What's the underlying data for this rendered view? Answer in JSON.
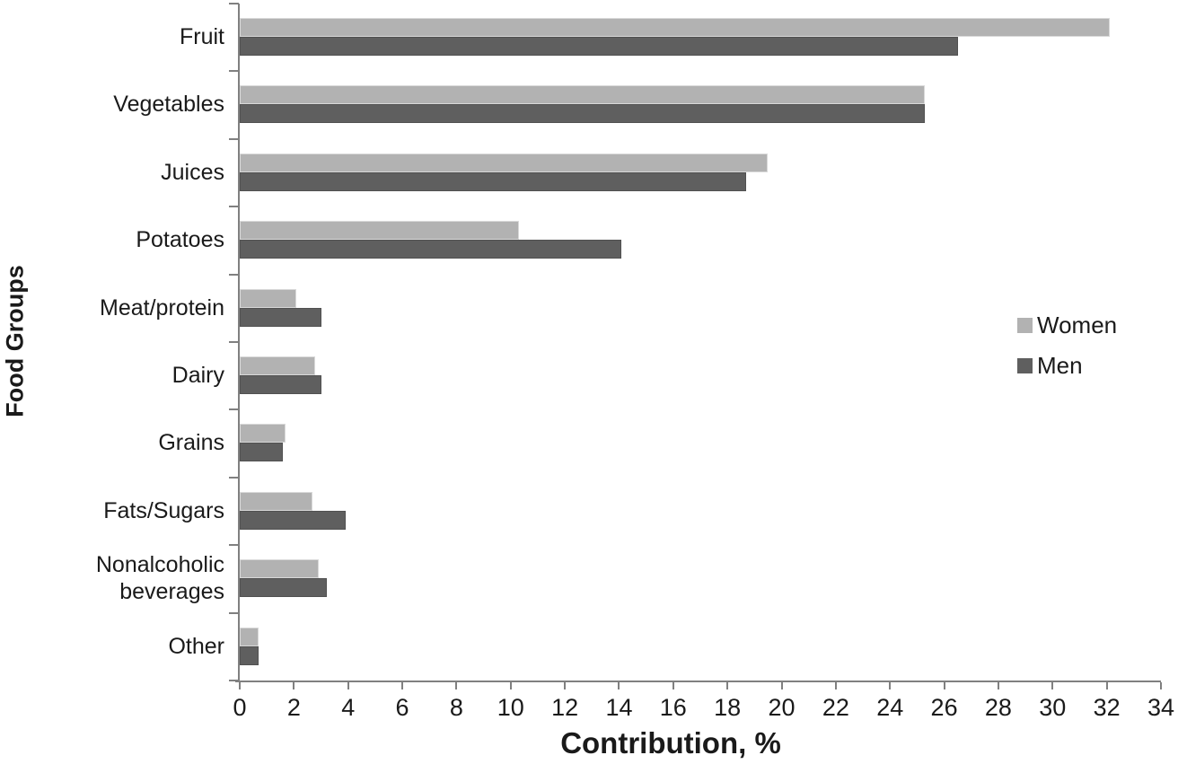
{
  "figure": {
    "background": "#ffffff",
    "axis_color": "#808080",
    "text_color": "#1a1a1a"
  },
  "chart_data": {
    "type": "bar",
    "orientation": "horizontal",
    "title": "",
    "xlabel": "Contribution, %",
    "ylabel": "Food Groups",
    "xlim": [
      0,
      34
    ],
    "xticks": [
      0,
      2,
      4,
      6,
      8,
      10,
      12,
      14,
      16,
      18,
      20,
      22,
      24,
      26,
      28,
      30,
      32,
      34
    ],
    "grid": false,
    "legend_position": "center-right",
    "categories": [
      "Fruit",
      "Vegetables",
      "Juices",
      "Potatoes",
      "Meat/protein",
      "Dairy",
      "Grains",
      "Fats/Sugars",
      "Nonalcoholic beverages",
      "Other"
    ],
    "series": [
      {
        "name": "Women",
        "color": "#b2b2b2",
        "border_color": "#d9d9d9",
        "values": [
          32.1,
          25.3,
          19.5,
          10.3,
          2.1,
          2.8,
          1.7,
          2.7,
          2.9,
          0.7
        ]
      },
      {
        "name": "Men",
        "color": "#5f5f5f",
        "border_color": "#515151",
        "values": [
          26.5,
          25.3,
          18.7,
          14.1,
          3.0,
          3.0,
          1.6,
          3.9,
          3.2,
          0.7
        ]
      }
    ]
  }
}
